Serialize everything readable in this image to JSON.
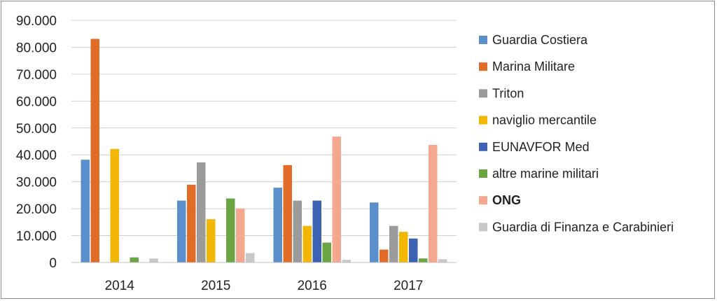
{
  "chart_data": {
    "type": "bar",
    "title": "",
    "xlabel": "",
    "ylabel": "",
    "categories": [
      "2014",
      "2015",
      "2016",
      "2017"
    ],
    "ylim": [
      0,
      90000
    ],
    "yticks": [
      0,
      10000,
      20000,
      30000,
      40000,
      50000,
      60000,
      70000,
      80000,
      90000
    ],
    "ytick_labels": [
      "0",
      "10.000",
      "20.000",
      "30.000",
      "40.000",
      "50.000",
      "60.000",
      "70.000",
      "80.000",
      "90.000"
    ],
    "grid": "horizontal",
    "legend_position": "right",
    "series": [
      {
        "name": "Guardia Costiera",
        "color": "#5b8fcb",
        "values": [
          38200,
          23000,
          27800,
          22300
        ]
      },
      {
        "name": "Marina Militare",
        "color": "#e06c27",
        "values": [
          83100,
          28900,
          36200,
          4800
        ]
      },
      {
        "name": "Triton",
        "color": "#9b9b9b",
        "values": [
          0,
          37200,
          23000,
          13600
        ]
      },
      {
        "name": "naviglio mercantile",
        "color": "#f2b705",
        "values": [
          42200,
          16100,
          13600,
          11400
        ]
      },
      {
        "name": "EUNAVFOR Med",
        "color": "#3b62b3",
        "values": [
          0,
          0,
          23000,
          8900
        ]
      },
      {
        "name": "altre marine militari",
        "color": "#6ba443",
        "values": [
          1900,
          23800,
          7400,
          1500
        ]
      },
      {
        "name": "ONG",
        "color": "#f4a890",
        "bold": true,
        "values": [
          0,
          20000,
          46800,
          43700
        ]
      },
      {
        "name": "Guardia di Finanza e Carabinieri",
        "color": "#c8c8c8",
        "values": [
          1500,
          3500,
          1000,
          1200
        ]
      }
    ]
  }
}
